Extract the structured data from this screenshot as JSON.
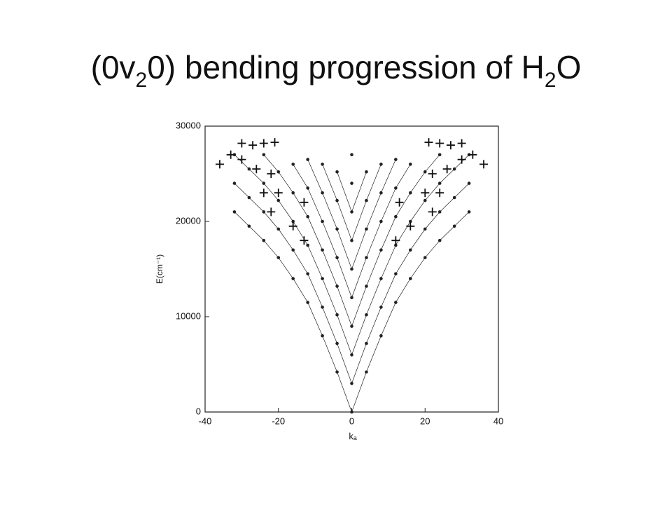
{
  "chart_data": {
    "type": "scatter",
    "title_parts": [
      {
        "text": "(0v"
      },
      {
        "text": "2",
        "sub": true
      },
      {
        "text": "0) bending progression of H"
      },
      {
        "text": "2",
        "sub": true
      },
      {
        "text": "O"
      }
    ],
    "x_label": "kₐ",
    "y_label": "E(cm⁻¹)",
    "xlim": [
      -40,
      40
    ],
    "xticks": [
      -40,
      -20,
      0,
      20,
      40
    ],
    "ylim": [
      0,
      30000
    ],
    "yticks": [
      0,
      10000,
      20000,
      30000
    ],
    "series": [
      {
        "marker": "dot",
        "color": "#222222",
        "x": [
          -32,
          -28,
          -24,
          -20,
          -16,
          -12,
          -8,
          -4,
          0,
          4,
          8,
          12,
          16,
          20,
          24,
          28,
          32
        ],
        "values": [
          21000,
          19500,
          18000,
          16200,
          14000,
          11500,
          8000,
          4200,
          0,
          4200,
          8000,
          11500,
          14000,
          16200,
          18000,
          19500,
          21000
        ]
      },
      {
        "marker": "dot",
        "color": "#222222",
        "x": [
          -32,
          -28,
          -24,
          -20,
          -16,
          -12,
          -8,
          -4,
          0,
          4,
          8,
          12,
          16,
          20,
          24,
          28,
          32
        ],
        "values": [
          24000,
          22500,
          21000,
          19200,
          17000,
          14500,
          11000,
          7200,
          3000,
          7200,
          11000,
          14500,
          17000,
          19200,
          21000,
          22500,
          24000
        ]
      },
      {
        "marker": "dot",
        "color": "#222222",
        "x": [
          -32,
          -28,
          -24,
          -20,
          -16,
          -12,
          -8,
          -4,
          0,
          4,
          8,
          12,
          16,
          20,
          24,
          28,
          32
        ],
        "values": [
          27000,
          25500,
          24000,
          22200,
          20000,
          17500,
          14000,
          10200,
          6000,
          10200,
          14000,
          17500,
          20000,
          22200,
          24000,
          25500,
          27000
        ]
      },
      {
        "marker": "dot",
        "color": "#222222",
        "x": [
          -24,
          -20,
          -16,
          -12,
          -8,
          -4,
          0,
          4,
          8,
          12,
          16,
          20,
          24
        ],
        "values": [
          27000,
          25200,
          23000,
          20500,
          17000,
          13200,
          9000,
          13200,
          17000,
          20500,
          23000,
          25200,
          27000
        ]
      },
      {
        "marker": "dot",
        "color": "#222222",
        "x": [
          -16,
          -12,
          -8,
          -4,
          0,
          4,
          8,
          12,
          16
        ],
        "values": [
          26000,
          23500,
          20000,
          16200,
          12000,
          16200,
          20000,
          23500,
          26000
        ]
      },
      {
        "marker": "dot",
        "color": "#222222",
        "x": [
          -12,
          -8,
          -4,
          0,
          4,
          8,
          12
        ],
        "values": [
          26500,
          23000,
          19200,
          15000,
          19200,
          23000,
          26500
        ]
      },
      {
        "marker": "dot",
        "color": "#222222",
        "x": [
          -8,
          -4,
          0,
          4,
          8
        ],
        "values": [
          26000,
          22200,
          18000,
          22200,
          26000
        ]
      },
      {
        "marker": "dot",
        "color": "#222222",
        "x": [
          -4,
          0,
          4
        ],
        "values": [
          25200,
          21000,
          25200
        ]
      },
      {
        "marker": "dot",
        "color": "#222222",
        "x": [
          0
        ],
        "values": [
          24000
        ]
      },
      {
        "marker": "dot",
        "color": "#222222",
        "x": [
          0
        ],
        "values": [
          27000
        ]
      },
      {
        "marker": "plus",
        "color": "#111111",
        "x": [
          -36,
          -33,
          -30,
          -27,
          -24,
          -21,
          -30,
          -26,
          -22,
          -24,
          -20,
          -22,
          -13,
          -16,
          -13,
          36,
          33,
          30,
          27,
          24,
          21,
          30,
          26,
          22,
          24,
          20,
          22,
          13,
          16,
          12
        ],
        "values": [
          26000,
          27000,
          28200,
          28000,
          28200,
          28300,
          26500,
          25500,
          25000,
          23000,
          23000,
          21000,
          22000,
          19500,
          18000,
          26000,
          27000,
          28200,
          28000,
          28200,
          28300,
          26500,
          25500,
          25000,
          23000,
          23000,
          21000,
          22000,
          19500,
          18000
        ]
      }
    ]
  }
}
